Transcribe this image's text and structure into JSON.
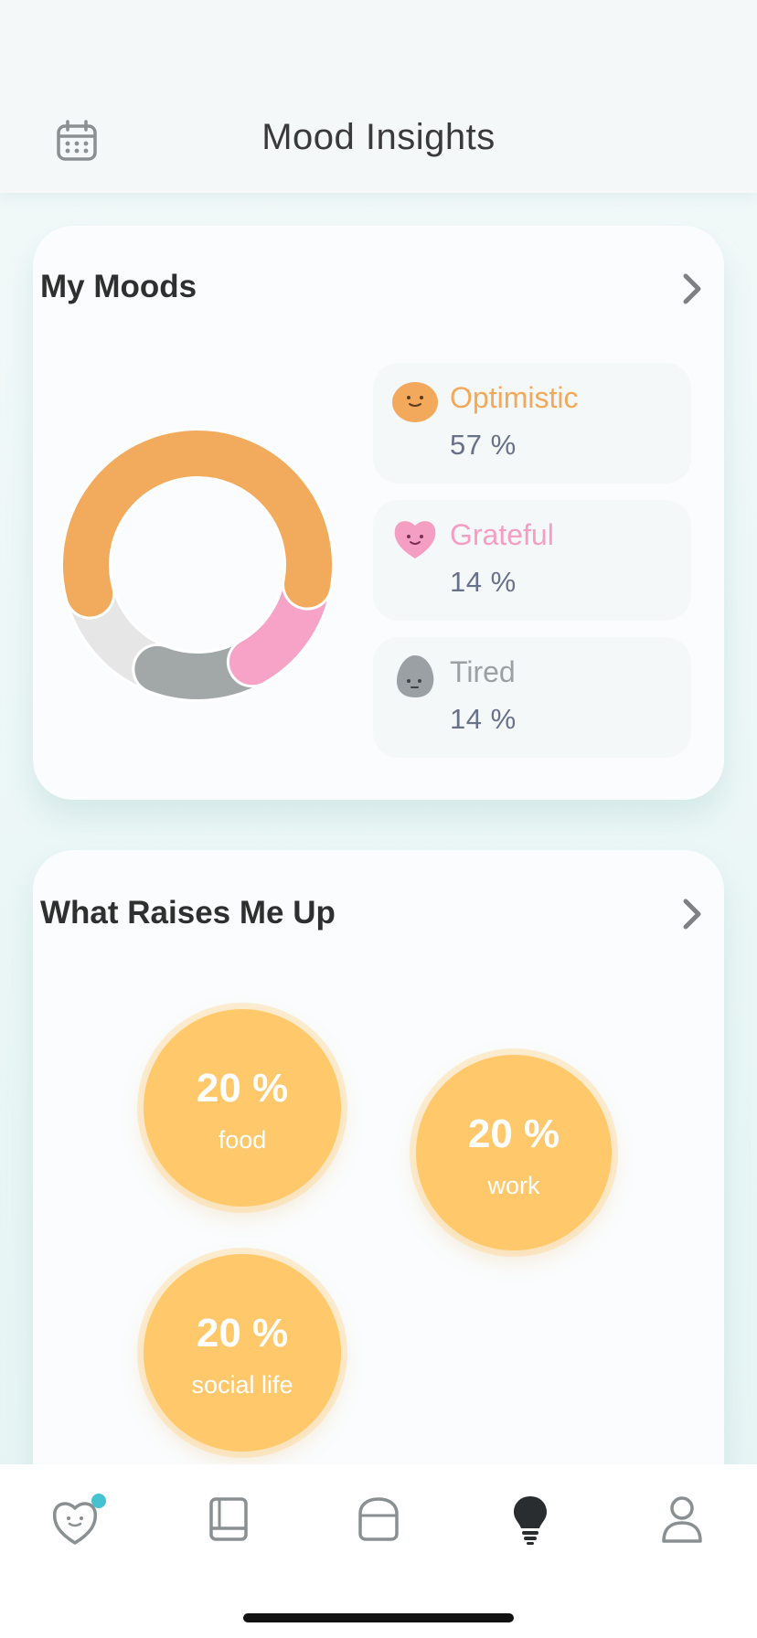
{
  "header": {
    "title": "Mood Insights",
    "calendar_icon": "calendar-icon"
  },
  "my_moods": {
    "title": "My Moods",
    "chevron_icon": "chevron-right-icon",
    "items": [
      {
        "label": "Optimistic",
        "percent": "57 %",
        "color": "#f2a95b",
        "icon": "optimistic-face-icon"
      },
      {
        "label": "Grateful",
        "percent": "14 %",
        "color": "#f59ec4",
        "icon": "grateful-heart-icon"
      },
      {
        "label": "Tired",
        "percent": "14 %",
        "color": "#9aa0a3",
        "icon": "tired-face-icon"
      }
    ],
    "chart_data": {
      "type": "pie",
      "categories": [
        "Optimistic",
        "Grateful",
        "Tired",
        "Other"
      ],
      "values": [
        57,
        14,
        14,
        15
      ],
      "colors": [
        "#f2aa5c",
        "#f7a2c7",
        "#a2a8a7",
        "#e6e6e6"
      ]
    }
  },
  "raises_me_up": {
    "title": "What Raises Me Up",
    "chevron_icon": "chevron-right-icon",
    "bubbles": [
      {
        "percent": "20 %",
        "label": "food"
      },
      {
        "percent": "20 %",
        "label": "work"
      },
      {
        "percent": "20 %",
        "label": "social life"
      }
    ]
  },
  "tabbar": {
    "tabs": [
      {
        "icon": "heart-face-icon",
        "active": false,
        "badge": true
      },
      {
        "icon": "journal-book-icon",
        "active": false
      },
      {
        "icon": "device-icon",
        "active": false
      },
      {
        "icon": "lightbulb-icon",
        "active": true
      },
      {
        "icon": "profile-icon",
        "active": false
      }
    ],
    "badge_color": "#45c2cf"
  }
}
